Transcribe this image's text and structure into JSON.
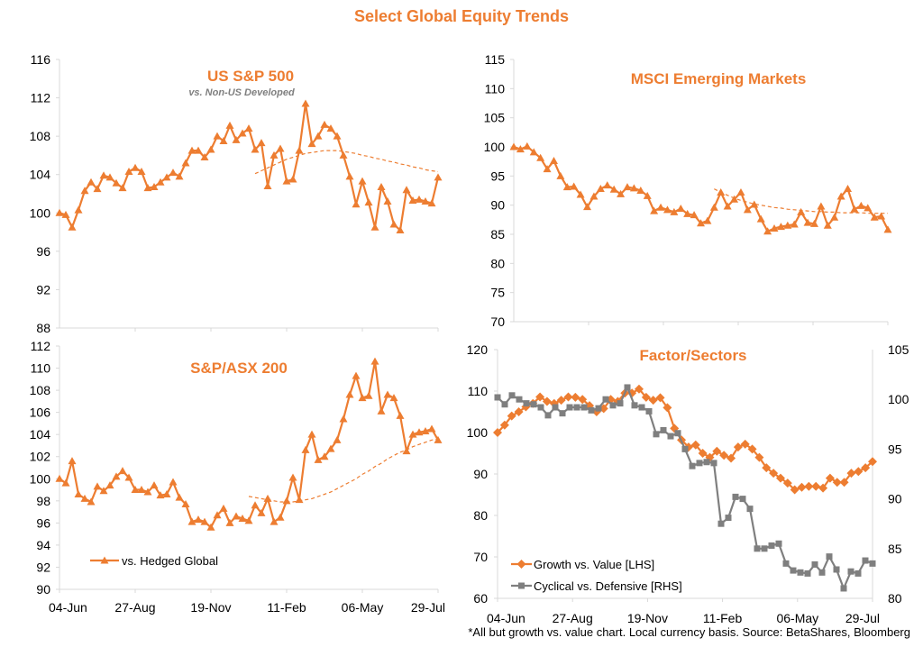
{
  "title": "Select Global Equity Trends",
  "footnote": "*All but growth vs. value chart. Local currency basis. Source: BetaShares, Bloomberg",
  "colors": {
    "orange": "#ED7D31",
    "gray": "#7F7F7F",
    "axis": "#D9D9D9"
  },
  "chart_data": [
    {
      "id": "sp500",
      "type": "line",
      "title": "US S&P 500",
      "subtitle": "vs. Non-US Developed",
      "ylim": [
        88,
        116
      ],
      "yticks": [
        88,
        92,
        96,
        100,
        104,
        108,
        112,
        116
      ],
      "xticks": [],
      "series": [
        {
          "style": "orange-marker",
          "values": [
            100.0,
            99.8,
            98.5,
            100.3,
            102.3,
            103.2,
            102.5,
            103.9,
            103.7,
            103.1,
            102.6,
            104.3,
            104.7,
            104.3,
            102.6,
            102.7,
            103.2,
            103.7,
            104.2,
            103.8,
            105.2,
            106.5,
            106.5,
            105.8,
            106.6,
            108.0,
            107.5,
            109.1,
            107.6,
            108.3,
            108.8,
            106.6,
            107.3,
            102.8,
            106.0,
            106.7,
            103.3,
            103.5,
            106.5,
            111.4,
            107.2,
            108.0,
            109.2,
            108.8,
            108.0,
            106.0,
            103.8,
            100.9,
            103.3,
            101.1,
            98.5,
            102.7,
            101.2,
            98.8,
            98.2,
            102.4,
            101.3,
            101.4,
            101.2,
            101.0,
            103.7
          ]
        },
        {
          "style": "orange-dashed",
          "start_index": 31,
          "values": [
            104.1,
            104.4,
            104.7,
            105.0,
            105.3,
            105.6,
            105.8,
            106.0,
            106.2,
            106.3,
            106.4,
            106.5,
            106.5,
            106.5,
            106.4,
            106.3,
            106.2,
            106.0,
            105.9,
            105.7,
            105.6,
            105.4,
            105.3,
            105.1,
            105.0,
            104.8,
            104.7,
            104.5,
            104.4,
            104.3
          ]
        }
      ]
    },
    {
      "id": "msci_em",
      "type": "line",
      "title": "MSCI Emerging Markets",
      "ylim": [
        70,
        115
      ],
      "yticks": [
        70,
        75,
        80,
        85,
        90,
        95,
        100,
        105,
        110,
        115
      ],
      "xticks": [],
      "series": [
        {
          "style": "orange-marker",
          "values": [
            100.0,
            99.6,
            100.1,
            99.1,
            98.1,
            96.2,
            97.6,
            95.0,
            93.1,
            93.2,
            91.8,
            89.7,
            91.5,
            92.8,
            93.4,
            92.7,
            91.9,
            93.1,
            92.9,
            92.5,
            91.6,
            89.0,
            89.6,
            89.2,
            88.8,
            89.4,
            88.5,
            88.3,
            86.9,
            87.3,
            89.6,
            92.2,
            89.8,
            91.0,
            92.2,
            89.2,
            90.1,
            87.6,
            85.5,
            86.0,
            86.3,
            86.5,
            86.7,
            88.8,
            87.0,
            86.8,
            89.8,
            86.5,
            87.9,
            91.5,
            92.8,
            89.3,
            89.9,
            89.5,
            87.9,
            88.1,
            85.8
          ]
        },
        {
          "style": "orange-dashed",
          "start_index": 30,
          "values": [
            92.8,
            92.2,
            91.7,
            91.2,
            90.8,
            90.5,
            90.2,
            90.0,
            89.8,
            89.6,
            89.5,
            89.3,
            89.2,
            89.1,
            89.0,
            88.9,
            88.9,
            88.8,
            88.8,
            88.7,
            88.7,
            88.7,
            88.7,
            88.6,
            88.6,
            88.6,
            88.6
          ]
        }
      ]
    },
    {
      "id": "asx200",
      "type": "line",
      "title": "S&P/ASX 200",
      "ylim": [
        90,
        112
      ],
      "yticks": [
        90,
        92,
        94,
        96,
        98,
        100,
        102,
        104,
        106,
        108,
        110,
        112
      ],
      "xticks": [
        "04-Jun",
        "27-Aug",
        "19-Nov",
        "11-Feb",
        "06-May",
        "29-Jul"
      ],
      "legend": "vs. Hedged Global",
      "series": [
        {
          "style": "orange-marker",
          "values": [
            100.0,
            99.6,
            101.6,
            98.6,
            98.2,
            97.9,
            99.3,
            98.9,
            99.4,
            100.2,
            100.7,
            100.1,
            99.0,
            99.0,
            98.8,
            99.4,
            98.5,
            98.6,
            99.7,
            98.3,
            97.7,
            96.1,
            96.3,
            96.1,
            95.6,
            96.7,
            97.3,
            96.0,
            96.6,
            96.4,
            96.2,
            97.6,
            96.9,
            98.2,
            96.1,
            96.5,
            98.0,
            100.1,
            98.1,
            102.6,
            104.0,
            101.7,
            102.0,
            102.7,
            103.5,
            105.4,
            107.6,
            109.3,
            107.3,
            107.5,
            110.6,
            106.1,
            107.6,
            107.3,
            105.7,
            102.5,
            104.0,
            104.2,
            104.3,
            104.5,
            103.5
          ]
        },
        {
          "style": "orange-dashed",
          "start_index": 30,
          "values": [
            98.4,
            98.3,
            98.2,
            98.1,
            98.0,
            97.9,
            97.9,
            97.9,
            98.0,
            98.1,
            98.2,
            98.4,
            98.6,
            98.8,
            99.1,
            99.4,
            99.7,
            100.0,
            100.4,
            100.7,
            101.1,
            101.4,
            101.8,
            102.1,
            102.4,
            102.6,
            102.9,
            103.1,
            103.3,
            103.5,
            103.6
          ]
        }
      ]
    },
    {
      "id": "factor_sectors",
      "type": "line",
      "title": "Factor/Sectors",
      "ylim": [
        60,
        120
      ],
      "yticks": [
        60,
        70,
        80,
        90,
        100,
        110,
        120
      ],
      "ylim_right": [
        80,
        105
      ],
      "yticks_right": [
        80,
        85,
        90,
        95,
        100,
        105
      ],
      "xticks": [
        "04-Jun",
        "27-Aug",
        "19-Nov",
        "11-Feb",
        "06-May",
        "29-Jul"
      ],
      "series": [
        {
          "name": "Growth vs. Value [LHS]",
          "style": "orange-diamond",
          "axis": "left",
          "values": [
            100.0,
            101.8,
            104.0,
            105.0,
            106.2,
            107.0,
            108.6,
            107.5,
            107.0,
            107.8,
            108.6,
            108.5,
            108.0,
            106.5,
            105.0,
            105.8,
            108.0,
            107.5,
            109.5,
            109.5,
            110.5,
            108.5,
            107.8,
            108.4,
            106.0,
            101.0,
            98.2,
            96.5,
            97.0,
            95.0,
            94.0,
            95.5,
            94.5,
            93.8,
            96.5,
            97.2,
            96.0,
            94.0,
            91.5,
            90.2,
            89.0,
            87.8,
            86.2,
            86.8,
            87.0,
            87.0,
            86.6,
            89.0,
            88.0,
            88.0,
            90.2,
            90.6,
            91.5,
            93.0
          ]
        },
        {
          "name": "Cyclical vs. Defensive [RHS]",
          "style": "gray-square",
          "axis": "right",
          "values": [
            100.2,
            99.5,
            100.4,
            100.0,
            99.6,
            99.5,
            99.2,
            98.4,
            99.2,
            98.6,
            99.2,
            99.2,
            99.2,
            98.9,
            99.1,
            100.0,
            99.4,
            99.6,
            101.2,
            99.4,
            99.2,
            98.8,
            96.5,
            96.9,
            96.3,
            96.6,
            95.0,
            93.3,
            93.6,
            93.7,
            93.6,
            87.5,
            88.1,
            90.2,
            90.0,
            89.0,
            85.0,
            85.0,
            85.3,
            85.5,
            83.5,
            82.8,
            82.6,
            82.5,
            83.4,
            82.6,
            84.2,
            82.9,
            81.0,
            82.7,
            82.5,
            83.8,
            83.5
          ]
        }
      ]
    }
  ]
}
